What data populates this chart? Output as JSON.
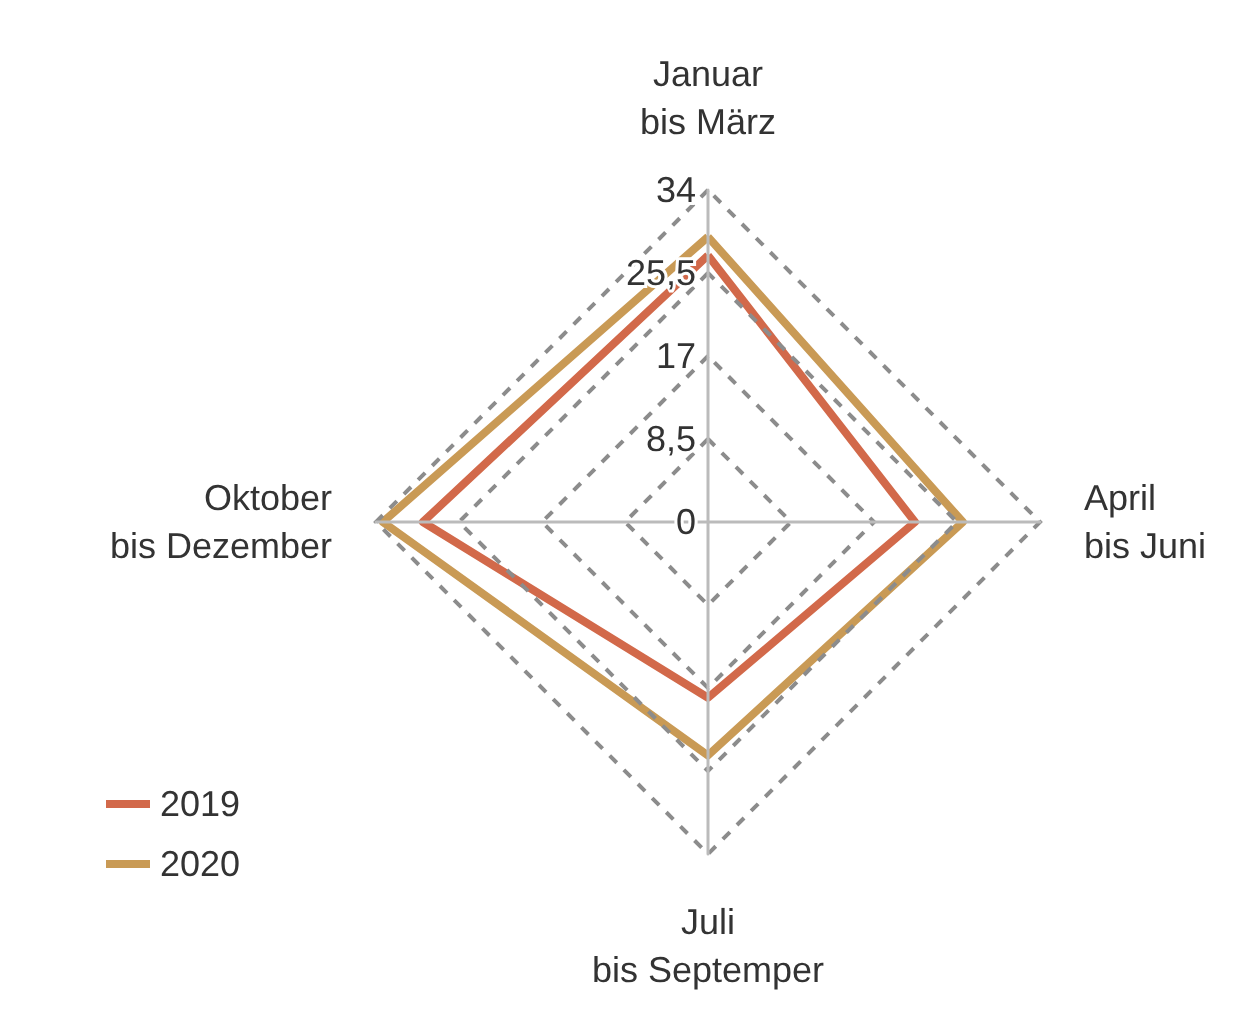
{
  "chart_data": {
    "type": "radar",
    "categories": [
      "Januar\nbis März",
      "April\nbis Juni",
      "Juli\nbis Septemper",
      "Oktober\nbis Dezember"
    ],
    "series": [
      {
        "name": "2019",
        "color": "#d2694a",
        "values": [
          27.3,
          21.2,
          18.0,
          29.2
        ]
      },
      {
        "name": "2020",
        "color": "#c99a55",
        "values": [
          29.2,
          26.1,
          23.9,
          33.3
        ]
      }
    ],
    "ylim": [
      0,
      34
    ],
    "yticks": [
      0,
      {
        "value": 8.5,
        "label": "8,5"
      },
      17,
      {
        "value": 25.5,
        "label": "25,5"
      },
      34
    ],
    "grid": true,
    "legend": "bottom left",
    "line_style": "solid",
    "marker": "none"
  }
}
